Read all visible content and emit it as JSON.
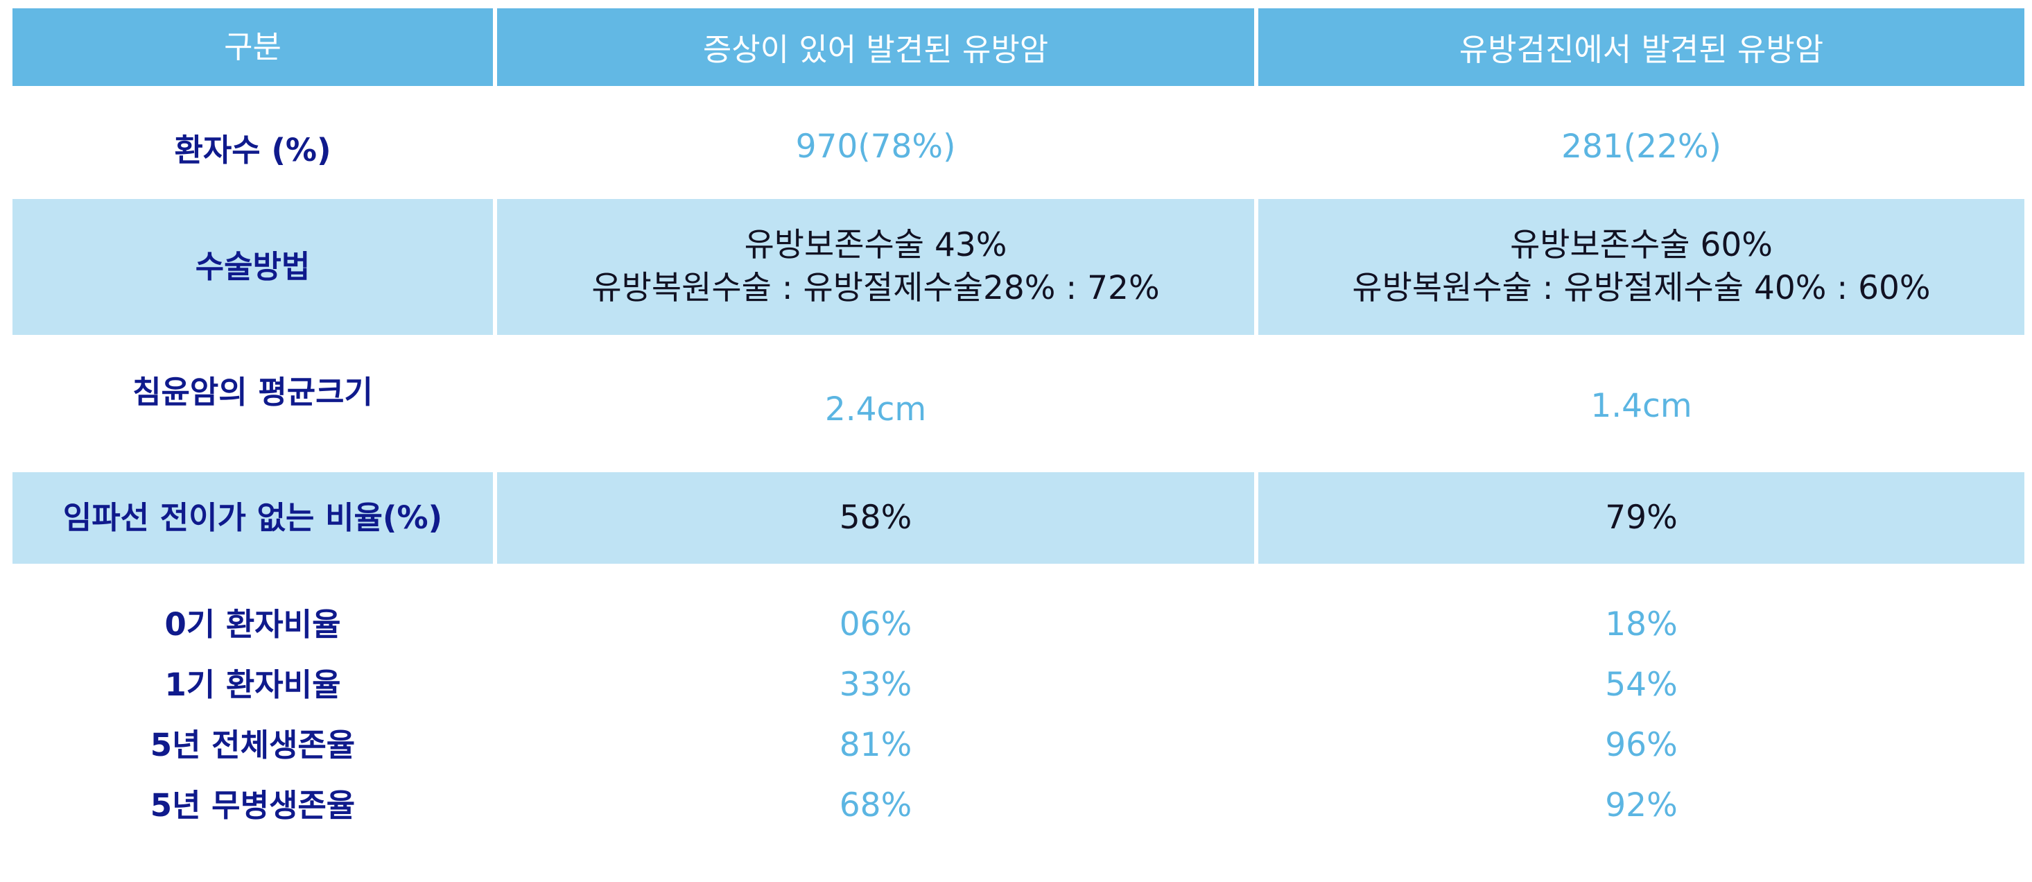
{
  "header": {
    "col0": "구분",
    "col1": "증상이 있어 발견된 유방암",
    "col2": "유방검진에서 발견된 유방암"
  },
  "rows": {
    "patients": {
      "label": "환자수 (%)",
      "symptomatic": "970(78%)",
      "screening": "281(22%)"
    },
    "surgery": {
      "label": "수술방법",
      "symptomatic": [
        "유방보존수술 43%",
        "유방복원수술 : 유방절제수술28% : 72%"
      ],
      "screening": [
        "유방보존수술 60%",
        "유방복원수술 : 유방절제수술 40% : 60%"
      ]
    },
    "tumor_size": {
      "label": "침윤암의 평균크기",
      "symptomatic": "2.4cm",
      "screening": "1.4cm"
    },
    "no_lymph_node": {
      "label": "임파선 전이가 없는 비율(%)",
      "symptomatic": "58%",
      "screening": "79%"
    },
    "stats": {
      "labels": [
        "0기 환자비율",
        "1기 환자비율",
        "5년 전체생존율",
        "5년 무병생존율"
      ],
      "symptomatic": [
        "06%",
        "33%",
        "81%",
        "68%"
      ],
      "screening": [
        "18%",
        "54%",
        "96%",
        "92%"
      ]
    }
  },
  "colors": {
    "header_bg": "#62b8e4",
    "shaded_bg": "#bfe3f4",
    "label_text": "#0f1a8c",
    "value_light": "#5bb5e2",
    "value_dark": "#111122"
  }
}
